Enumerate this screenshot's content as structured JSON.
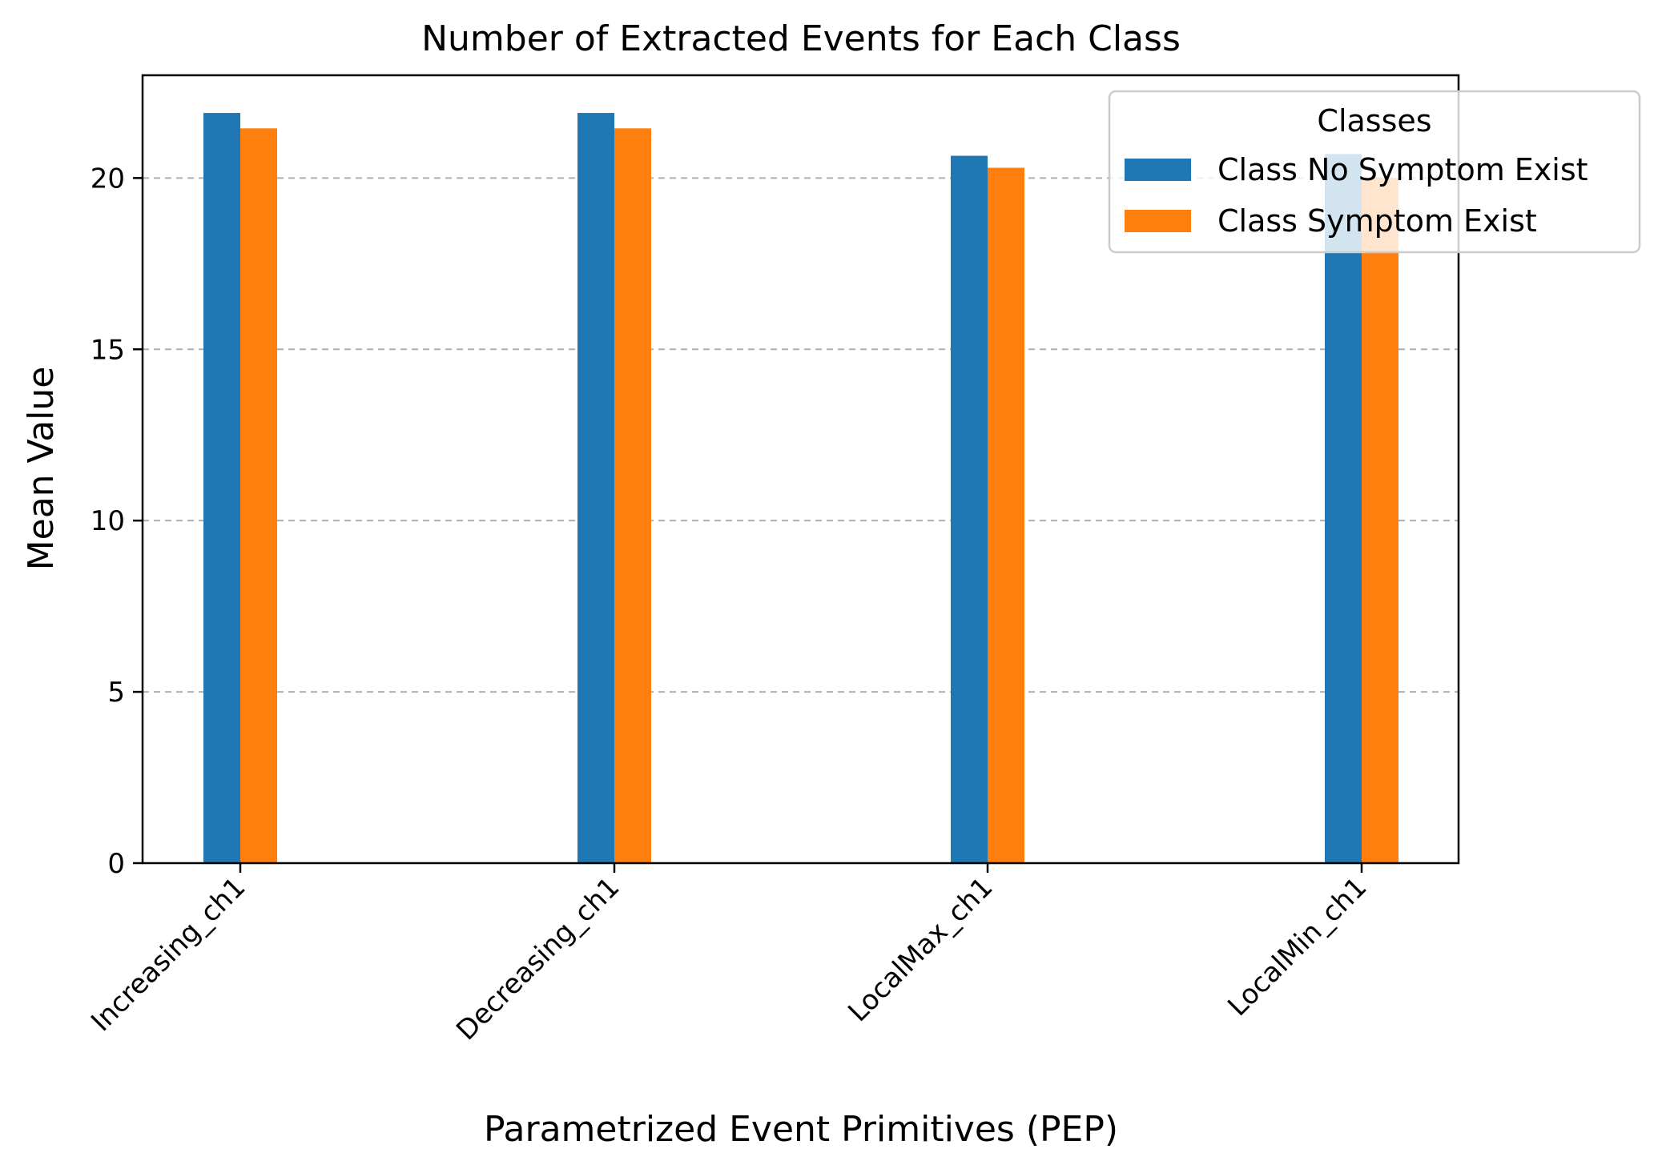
{
  "chart_data": {
    "type": "bar",
    "title": "Number of Extracted Events for Each Class",
    "xlabel": "Parametrized Event Primitives (PEP)",
    "ylabel": "Mean Value",
    "categories": [
      "Increasing_ch1",
      "Decreasing_ch1",
      "LocalMax_ch1",
      "LocalMin_ch1"
    ],
    "series": [
      {
        "name": "Class No Symptom Exist",
        "color": "#1f77b4",
        "values": [
          21.9,
          21.9,
          20.65,
          20.7
        ]
      },
      {
        "name": "Class Symptom Exist",
        "color": "#ff7f0e",
        "values": [
          21.45,
          21.45,
          20.3,
          20.0
        ]
      }
    ],
    "ylim": [
      0,
      23
    ],
    "yticks": [
      0,
      5,
      10,
      15,
      20
    ],
    "grid": "y-dashed",
    "legend": {
      "title": "Classes",
      "placement": "top-right"
    }
  }
}
